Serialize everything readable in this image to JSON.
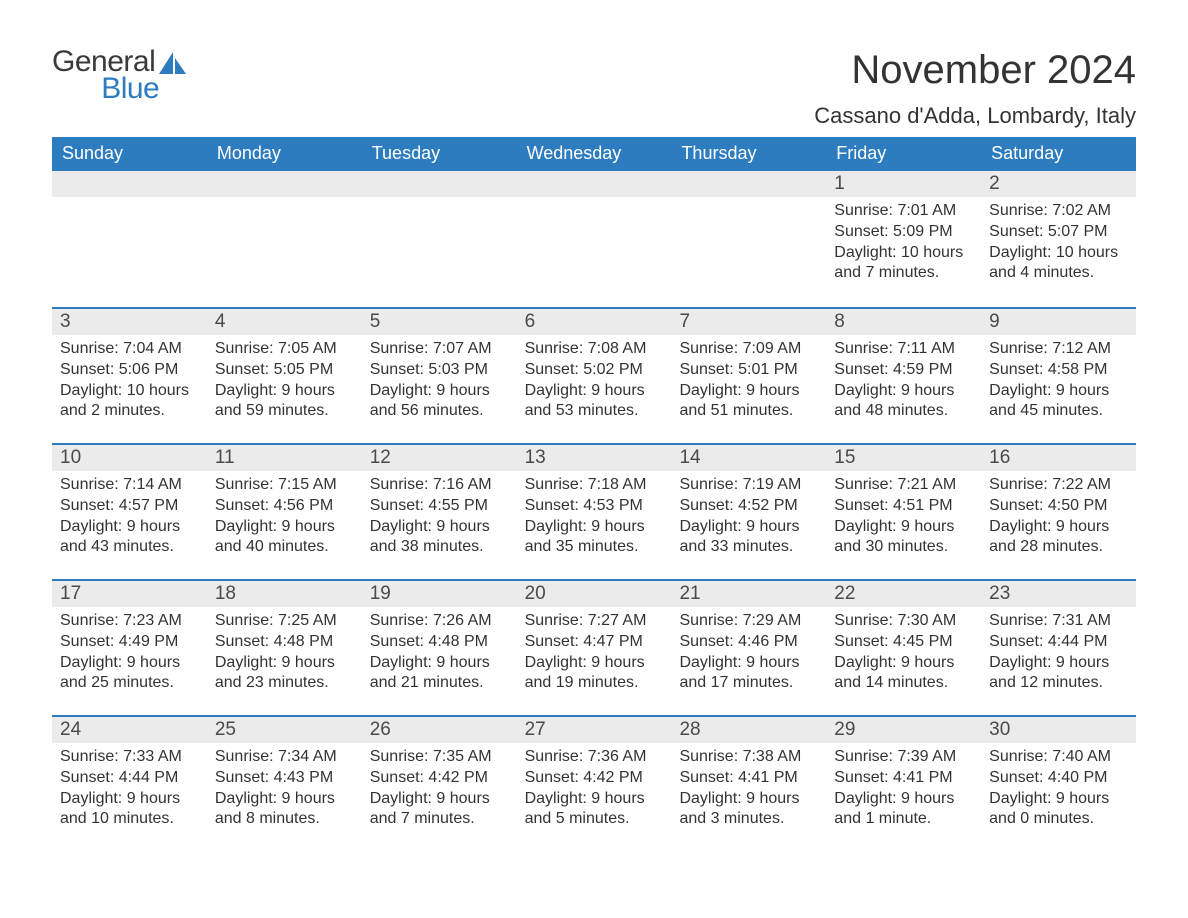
{
  "logo": {
    "general": "General",
    "blue": "Blue",
    "icon_color": "#2e7cc0"
  },
  "title": "November 2024",
  "location": "Cassano d'Adda, Lombardy, Italy",
  "colors": {
    "header_bg": "#2e7cc0",
    "header_text": "#ffffff",
    "daynum_bg": "#ebebeb",
    "row_border": "#2e7cc0",
    "text": "#333333",
    "logo_gray": "#3a3a3a"
  },
  "weekdays": [
    "Sunday",
    "Monday",
    "Tuesday",
    "Wednesday",
    "Thursday",
    "Friday",
    "Saturday"
  ],
  "weeks": [
    [
      null,
      null,
      null,
      null,
      null,
      {
        "n": "1",
        "sr": "Sunrise: 7:01 AM",
        "ss": "Sunset: 5:09 PM",
        "dl": "Daylight: 10 hours and 7 minutes."
      },
      {
        "n": "2",
        "sr": "Sunrise: 7:02 AM",
        "ss": "Sunset: 5:07 PM",
        "dl": "Daylight: 10 hours and 4 minutes."
      }
    ],
    [
      {
        "n": "3",
        "sr": "Sunrise: 7:04 AM",
        "ss": "Sunset: 5:06 PM",
        "dl": "Daylight: 10 hours and 2 minutes."
      },
      {
        "n": "4",
        "sr": "Sunrise: 7:05 AM",
        "ss": "Sunset: 5:05 PM",
        "dl": "Daylight: 9 hours and 59 minutes."
      },
      {
        "n": "5",
        "sr": "Sunrise: 7:07 AM",
        "ss": "Sunset: 5:03 PM",
        "dl": "Daylight: 9 hours and 56 minutes."
      },
      {
        "n": "6",
        "sr": "Sunrise: 7:08 AM",
        "ss": "Sunset: 5:02 PM",
        "dl": "Daylight: 9 hours and 53 minutes."
      },
      {
        "n": "7",
        "sr": "Sunrise: 7:09 AM",
        "ss": "Sunset: 5:01 PM",
        "dl": "Daylight: 9 hours and 51 minutes."
      },
      {
        "n": "8",
        "sr": "Sunrise: 7:11 AM",
        "ss": "Sunset: 4:59 PM",
        "dl": "Daylight: 9 hours and 48 minutes."
      },
      {
        "n": "9",
        "sr": "Sunrise: 7:12 AM",
        "ss": "Sunset: 4:58 PM",
        "dl": "Daylight: 9 hours and 45 minutes."
      }
    ],
    [
      {
        "n": "10",
        "sr": "Sunrise: 7:14 AM",
        "ss": "Sunset: 4:57 PM",
        "dl": "Daylight: 9 hours and 43 minutes."
      },
      {
        "n": "11",
        "sr": "Sunrise: 7:15 AM",
        "ss": "Sunset: 4:56 PM",
        "dl": "Daylight: 9 hours and 40 minutes."
      },
      {
        "n": "12",
        "sr": "Sunrise: 7:16 AM",
        "ss": "Sunset: 4:55 PM",
        "dl": "Daylight: 9 hours and 38 minutes."
      },
      {
        "n": "13",
        "sr": "Sunrise: 7:18 AM",
        "ss": "Sunset: 4:53 PM",
        "dl": "Daylight: 9 hours and 35 minutes."
      },
      {
        "n": "14",
        "sr": "Sunrise: 7:19 AM",
        "ss": "Sunset: 4:52 PM",
        "dl": "Daylight: 9 hours and 33 minutes."
      },
      {
        "n": "15",
        "sr": "Sunrise: 7:21 AM",
        "ss": "Sunset: 4:51 PM",
        "dl": "Daylight: 9 hours and 30 minutes."
      },
      {
        "n": "16",
        "sr": "Sunrise: 7:22 AM",
        "ss": "Sunset: 4:50 PM",
        "dl": "Daylight: 9 hours and 28 minutes."
      }
    ],
    [
      {
        "n": "17",
        "sr": "Sunrise: 7:23 AM",
        "ss": "Sunset: 4:49 PM",
        "dl": "Daylight: 9 hours and 25 minutes."
      },
      {
        "n": "18",
        "sr": "Sunrise: 7:25 AM",
        "ss": "Sunset: 4:48 PM",
        "dl": "Daylight: 9 hours and 23 minutes."
      },
      {
        "n": "19",
        "sr": "Sunrise: 7:26 AM",
        "ss": "Sunset: 4:48 PM",
        "dl": "Daylight: 9 hours and 21 minutes."
      },
      {
        "n": "20",
        "sr": "Sunrise: 7:27 AM",
        "ss": "Sunset: 4:47 PM",
        "dl": "Daylight: 9 hours and 19 minutes."
      },
      {
        "n": "21",
        "sr": "Sunrise: 7:29 AM",
        "ss": "Sunset: 4:46 PM",
        "dl": "Daylight: 9 hours and 17 minutes."
      },
      {
        "n": "22",
        "sr": "Sunrise: 7:30 AM",
        "ss": "Sunset: 4:45 PM",
        "dl": "Daylight: 9 hours and 14 minutes."
      },
      {
        "n": "23",
        "sr": "Sunrise: 7:31 AM",
        "ss": "Sunset: 4:44 PM",
        "dl": "Daylight: 9 hours and 12 minutes."
      }
    ],
    [
      {
        "n": "24",
        "sr": "Sunrise: 7:33 AM",
        "ss": "Sunset: 4:44 PM",
        "dl": "Daylight: 9 hours and 10 minutes."
      },
      {
        "n": "25",
        "sr": "Sunrise: 7:34 AM",
        "ss": "Sunset: 4:43 PM",
        "dl": "Daylight: 9 hours and 8 minutes."
      },
      {
        "n": "26",
        "sr": "Sunrise: 7:35 AM",
        "ss": "Sunset: 4:42 PM",
        "dl": "Daylight: 9 hours and 7 minutes."
      },
      {
        "n": "27",
        "sr": "Sunrise: 7:36 AM",
        "ss": "Sunset: 4:42 PM",
        "dl": "Daylight: 9 hours and 5 minutes."
      },
      {
        "n": "28",
        "sr": "Sunrise: 7:38 AM",
        "ss": "Sunset: 4:41 PM",
        "dl": "Daylight: 9 hours and 3 minutes."
      },
      {
        "n": "29",
        "sr": "Sunrise: 7:39 AM",
        "ss": "Sunset: 4:41 PM",
        "dl": "Daylight: 9 hours and 1 minute."
      },
      {
        "n": "30",
        "sr": "Sunrise: 7:40 AM",
        "ss": "Sunset: 4:40 PM",
        "dl": "Daylight: 9 hours and 0 minutes."
      }
    ]
  ]
}
